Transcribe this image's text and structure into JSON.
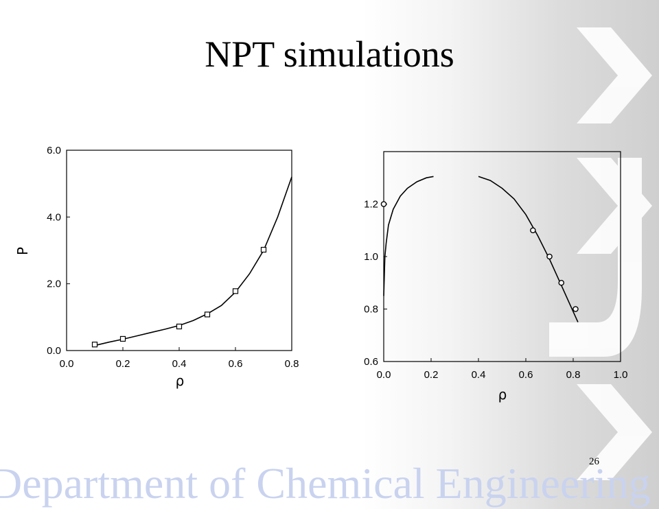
{
  "slide": {
    "title": "NPT simulations",
    "page_number": "26",
    "footer": "Department of Chemical Engineering"
  },
  "colors": {
    "background": "#ffffff",
    "watermark": "#ffffff",
    "footer_text": "#c9d3ef",
    "ink": "#000000"
  },
  "chart_data": [
    {
      "type": "line",
      "title": "",
      "xlabel": "ρ",
      "ylabel": "P",
      "xlim": [
        0.0,
        0.8
      ],
      "ylim": [
        0.0,
        6.0
      ],
      "x_ticks": [
        "0.0",
        "0.2",
        "0.4",
        "0.6",
        "0.8"
      ],
      "y_ticks": [
        "0.0",
        "2.0",
        "4.0",
        "6.0"
      ],
      "grid": false,
      "series": [
        {
          "kind": "line",
          "x": [
            0.1,
            0.15,
            0.2,
            0.25,
            0.3,
            0.35,
            0.4,
            0.45,
            0.5,
            0.55,
            0.6,
            0.65,
            0.7,
            0.75,
            0.8
          ],
          "y": [
            0.15,
            0.25,
            0.34,
            0.44,
            0.54,
            0.64,
            0.75,
            0.9,
            1.1,
            1.35,
            1.75,
            2.3,
            3.0,
            4.0,
            5.2
          ]
        },
        {
          "kind": "markers",
          "marker": "square",
          "x": [
            0.1,
            0.2,
            0.4,
            0.5,
            0.6,
            0.7
          ],
          "y": [
            0.18,
            0.35,
            0.72,
            1.08,
            1.78,
            3.02
          ]
        }
      ]
    },
    {
      "type": "line",
      "title": "",
      "xlabel": "ρ",
      "ylabel": "",
      "xlim": [
        0.0,
        1.0
      ],
      "ylim": [
        0.6,
        1.4
      ],
      "x_ticks": [
        "0.0",
        "0.2",
        "0.4",
        "0.6",
        "0.8",
        "1.0"
      ],
      "y_ticks": [
        "0.6",
        "0.8",
        "1.0",
        "1.2"
      ],
      "grid": false,
      "series": [
        {
          "kind": "line",
          "x": [
            0.0,
            0.005,
            0.01,
            0.02,
            0.04,
            0.07,
            0.1,
            0.14,
            0.18,
            0.21
          ],
          "y": [
            0.85,
            1.0,
            1.05,
            1.12,
            1.18,
            1.23,
            1.26,
            1.285,
            1.3,
            1.305
          ]
        },
        {
          "kind": "line",
          "x": [
            0.4,
            0.45,
            0.5,
            0.55,
            0.6,
            0.65,
            0.7,
            0.75,
            0.8,
            0.82
          ],
          "y": [
            1.305,
            1.29,
            1.26,
            1.22,
            1.16,
            1.08,
            0.99,
            0.89,
            0.79,
            0.75
          ]
        },
        {
          "kind": "markers",
          "marker": "circle",
          "x": [
            0.0,
            0.63,
            0.7,
            0.75,
            0.81
          ],
          "y": [
            1.2,
            1.1,
            1.0,
            0.9,
            0.8
          ]
        }
      ]
    }
  ]
}
